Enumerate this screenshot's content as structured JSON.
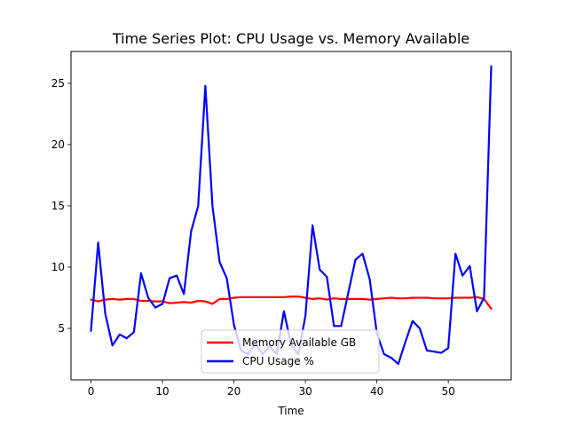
{
  "chart_data": {
    "type": "line",
    "title": "Time Series Plot: CPU Usage vs. Memory Available",
    "xlabel": "Time",
    "ylabel": "",
    "xlim": [
      -2.8,
      58.8
    ],
    "ylim": [
      0.8,
      27.6
    ],
    "xticks": [
      0,
      10,
      20,
      30,
      40,
      50
    ],
    "yticks": [
      5,
      10,
      15,
      20,
      25
    ],
    "grid": false,
    "legend_position": "lower center",
    "x": [
      0,
      1,
      2,
      3,
      4,
      5,
      6,
      7,
      8,
      9,
      10,
      11,
      12,
      13,
      14,
      15,
      16,
      17,
      18,
      19,
      20,
      21,
      22,
      23,
      24,
      25,
      26,
      27,
      28,
      29,
      30,
      31,
      32,
      33,
      34,
      35,
      36,
      37,
      38,
      39,
      40,
      41,
      42,
      43,
      44,
      45,
      46,
      47,
      48,
      49,
      50,
      51,
      52,
      53,
      54,
      55,
      56
    ],
    "series": [
      {
        "name": "Memory Available GB",
        "color": "#ff0000",
        "values": [
          7.35,
          7.2,
          7.35,
          7.4,
          7.35,
          7.4,
          7.4,
          7.25,
          7.25,
          7.2,
          7.2,
          7.05,
          7.1,
          7.15,
          7.1,
          7.25,
          7.2,
          7.0,
          7.4,
          7.4,
          7.5,
          7.55,
          7.55,
          7.55,
          7.55,
          7.55,
          7.55,
          7.55,
          7.6,
          7.6,
          7.5,
          7.4,
          7.45,
          7.35,
          7.45,
          7.4,
          7.4,
          7.4,
          7.4,
          7.35,
          7.4,
          7.45,
          7.5,
          7.45,
          7.45,
          7.5,
          7.5,
          7.5,
          7.45,
          7.45,
          7.45,
          7.5,
          7.5,
          7.5,
          7.55,
          7.4,
          6.6
        ]
      },
      {
        "name": "CPU Usage %",
        "color": "#0000ff",
        "values": [
          4.8,
          12.0,
          6.2,
          3.6,
          4.5,
          4.2,
          4.7,
          9.5,
          7.5,
          6.7,
          7.0,
          9.1,
          9.3,
          7.8,
          12.9,
          15.0,
          24.8,
          15.0,
          10.4,
          9.1,
          5.3,
          3.2,
          2.9,
          3.8,
          2.9,
          3.5,
          2.9,
          6.4,
          3.7,
          2.9,
          6.0,
          13.4,
          9.8,
          9.2,
          5.2,
          5.2,
          7.9,
          10.6,
          11.1,
          9.0,
          4.6,
          2.9,
          2.6,
          2.1,
          3.9,
          5.6,
          5.0,
          3.2,
          3.1,
          3.0,
          3.4,
          11.1,
          9.3,
          10.1,
          6.4,
          7.5,
          26.4
        ]
      }
    ]
  }
}
